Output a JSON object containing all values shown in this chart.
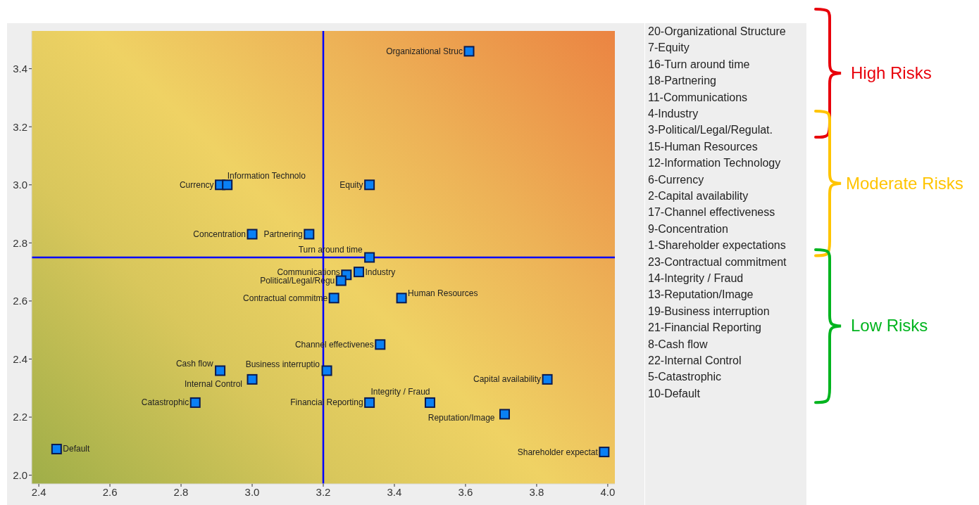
{
  "chart_data": {
    "type": "scatter",
    "marker": "square",
    "x": [
      3.61,
      2.91,
      2.93,
      3.33,
      3.0,
      3.16,
      3.33,
      3.265,
      3.3,
      3.25,
      3.23,
      3.42,
      3.36,
      3.21,
      2.91,
      3.0,
      3.83,
      2.84,
      3.33,
      3.5,
      3.71,
      2.45,
      3.99
    ],
    "series": [
      {
        "color": "#0a80f5",
        "values": [
          3.46,
          3.0,
          3.0,
          3.0,
          2.83,
          2.83,
          2.75,
          2.69,
          2.7,
          2.67,
          2.61,
          2.61,
          2.45,
          2.36,
          2.36,
          2.33,
          2.33,
          2.25,
          2.25,
          2.25,
          2.21,
          2.09,
          2.08
        ]
      }
    ],
    "xlim": [
      2.38,
      4.02
    ],
    "xticks": [
      2.4,
      2.6,
      2.8,
      {
        "value": 3,
        "label": "3.0"
      },
      3.2,
      3.4,
      3.6,
      3.8,
      {
        "value": 4,
        "label": "4.0"
      }
    ],
    "ylim": [
      1.97,
      3.53
    ],
    "yticks": [
      {
        "value": 2,
        "label": "2.0"
      },
      2.2,
      2.4,
      2.6,
      2.8,
      {
        "value": 3,
        "label": "3.0"
      },
      3.2,
      3.4
    ],
    "ref_lines": [
      {
        "axis": "x",
        "value": 3.2,
        "color": "#0000ff"
      },
      {
        "axis": "y",
        "value": 2.75,
        "color": "#0000ff"
      }
    ],
    "annotations": [
      {
        "text": "Organizational Struc",
        "x": 3.61,
        "y": 3.46
      },
      {
        "text": "Currency",
        "x": 2.91,
        "y": 3.0
      },
      {
        "text": "Information Technolo",
        "x": 2.93,
        "y": 3.0
      },
      {
        "text": "Equity",
        "x": 3.33,
        "y": 3.0
      },
      {
        "text": "Concentration",
        "x": 3.0,
        "y": 2.83
      },
      {
        "text": "Partnering",
        "x": 3.16,
        "y": 2.83
      },
      {
        "text": "Turn around time",
        "x": 3.33,
        "y": 2.75
      },
      {
        "text": "Communications",
        "x": 3.265,
        "y": 2.69
      },
      {
        "text": "Industry",
        "x": 3.3,
        "y": 2.7
      },
      {
        "text": "Political/Legal/Regu",
        "x": 3.25,
        "y": 2.67
      },
      {
        "text": "Contractual commitme",
        "x": 3.23,
        "y": 2.61
      },
      {
        "text": "Human Resources",
        "x": 3.42,
        "y": 2.61
      },
      {
        "text": "Channel effectivenes",
        "x": 3.36,
        "y": 2.45
      },
      {
        "text": "Business interruptio",
        "x": 3.21,
        "y": 2.36
      },
      {
        "text": "Cash flow",
        "x": 2.91,
        "y": 2.36
      },
      {
        "text": "Internal Control",
        "x": 3.0,
        "y": 2.33
      },
      {
        "text": "Capital availability",
        "x": 3.83,
        "y": 2.33
      },
      {
        "text": "Catastrophic",
        "x": 2.84,
        "y": 2.25
      },
      {
        "text": "Financial Reporting",
        "x": 3.33,
        "y": 2.25
      },
      {
        "text": "Integrity / Fraud",
        "x": 3.5,
        "y": 2.25
      },
      {
        "text": "Reputation/Image",
        "x": 3.71,
        "y": 2.21
      },
      {
        "text": "Default",
        "x": 2.45,
        "y": 2.09
      },
      {
        "text": "Shareholder expectat",
        "x": 3.99,
        "y": 2.08
      },
      "20-Organizational Structure",
      "7-Equity",
      "16-Turn around time",
      "18-Partnering",
      "11-Communications",
      "4-Industry",
      "3-Political/Legal/Regulat.",
      "15-Human Resources",
      "12-Information Technology",
      "6-Currency",
      "2-Capital availability",
      "17-Channel effectiveness",
      "9-Concentration",
      "1-Shareholder expectations",
      "23-Contractual commitment",
      "14-Integrity / Fraud",
      "13-Reputation/Image",
      "19-Business interruption",
      "21-Financial Reporting",
      "8-Cash flow",
      "22-Internal Control",
      "5-Catastrophic",
      "10-Default",
      "High Risks",
      "Moderate Risks",
      "Low Risks"
    ]
  }
}
